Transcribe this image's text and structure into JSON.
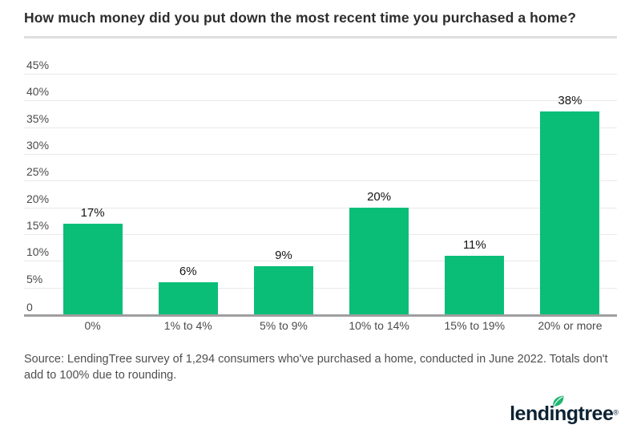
{
  "header": {
    "title": "How much money did you put down the most recent time you purchased a home?"
  },
  "chart_data": {
    "type": "bar",
    "title": "How much money did you put down the most recent time you purchased a home?",
    "categories": [
      "0%",
      "1% to 4%",
      "5% to 9%",
      "10% to 14%",
      "15% to 19%",
      "20% or more"
    ],
    "values": [
      17,
      6,
      9,
      20,
      11,
      38
    ],
    "value_labels": [
      "17%",
      "6%",
      "9%",
      "20%",
      "11%",
      "38%"
    ],
    "xlabel": "",
    "ylabel": "",
    "ylim": [
      0,
      45
    ],
    "y_ticks": [
      {
        "value": 45,
        "label": "45%"
      },
      {
        "value": 40,
        "label": "40%"
      },
      {
        "value": 35,
        "label": "35%"
      },
      {
        "value": 30,
        "label": "30%"
      },
      {
        "value": 25,
        "label": "25%"
      },
      {
        "value": 20,
        "label": "20%"
      },
      {
        "value": 15,
        "label": "15%"
      },
      {
        "value": 10,
        "label": "10%"
      },
      {
        "value": 5,
        "label": "5%"
      },
      {
        "value": 0,
        "label": "0"
      }
    ],
    "grid": true,
    "legend": "none",
    "bar_color": "#0abe78"
  },
  "footer": {
    "source_text": "Source: LendingTree survey of 1,294 consumers who've purchased a home, conducted in June 2022. Totals don't add to 100% due to rounding.",
    "logo_text": "lendingtree",
    "registered_mark": "®"
  },
  "colors": {
    "bar_green": "#0abe78",
    "leaf_green": "#21b573",
    "logo_navy": "#0c2233",
    "gridline": "#e9e9e9",
    "axis_line": "#9e9e9e"
  }
}
